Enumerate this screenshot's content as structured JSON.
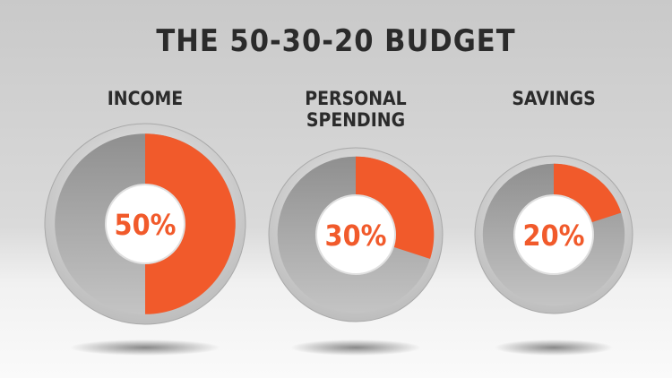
{
  "title": "THE 50-30-20 BUDGET",
  "chart_data": [
    {
      "type": "pie",
      "title": "INCOME",
      "values": [
        50
      ],
      "value_labels": [
        "50%"
      ],
      "color": "#f15a2b"
    },
    {
      "type": "pie",
      "title": "PERSONAL SPENDING",
      "values": [
        30
      ],
      "value_labels": [
        "30%"
      ],
      "color": "#f15a2b"
    },
    {
      "type": "pie",
      "title": "SAVINGS",
      "values": [
        20
      ],
      "value_labels": [
        "20%"
      ],
      "color": "#f15a2b"
    }
  ]
}
